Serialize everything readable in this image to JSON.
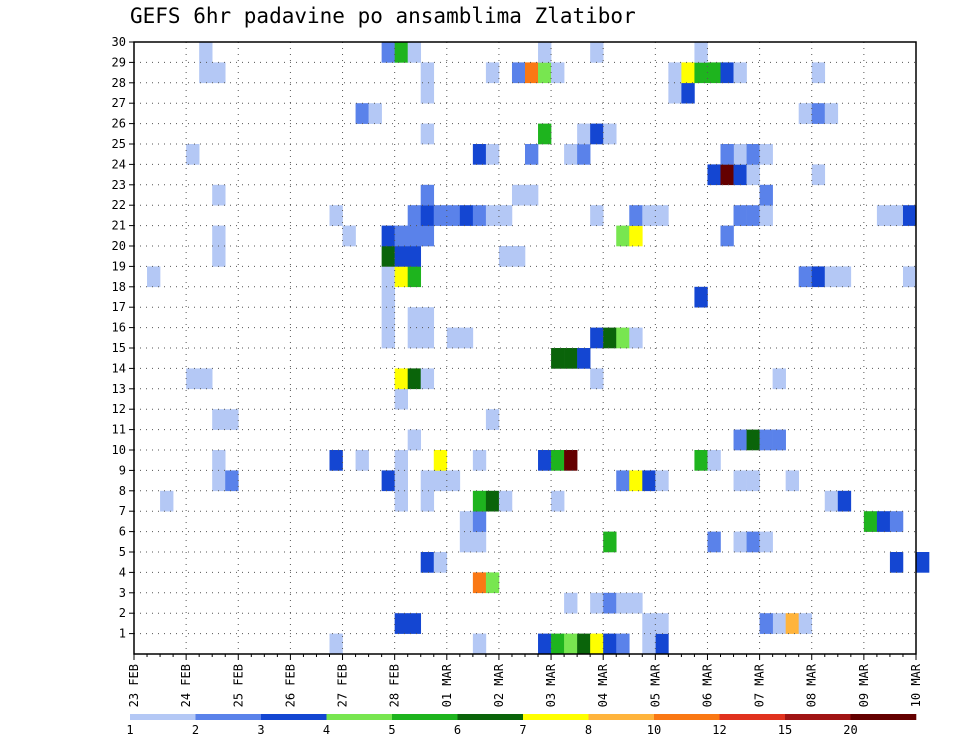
{
  "title": "GEFS 6hr padavine po ansamblima Zlatibor",
  "chart_data": {
    "type": "heatmap",
    "title": "GEFS 6hr padavine po ansamblima Zlatibor",
    "x_ticks": [
      "23 FEB",
      "24 FEB",
      "25 FEB",
      "26 FEB",
      "27 FEB",
      "28 FEB",
      "01 MAR",
      "02 MAR",
      "03 MAR",
      "04 MAR",
      "05 MAR",
      "06 MAR",
      "07 MAR",
      "08 MAR",
      "09 MAR",
      "10 MAR"
    ],
    "y_ticks": [
      1,
      2,
      3,
      4,
      5,
      6,
      7,
      8,
      9,
      10,
      11,
      12,
      13,
      14,
      15,
      16,
      17,
      18,
      19,
      20,
      21,
      22,
      23,
      24,
      25,
      26,
      27,
      28,
      29,
      30
    ],
    "ylim": [
      0,
      30
    ],
    "x_steps": 60,
    "grid": true,
    "colorbar": {
      "labels": [
        "1",
        "2",
        "3",
        "4",
        "5",
        "6",
        "7",
        "8",
        "10",
        "12",
        "15",
        "20"
      ],
      "colors": [
        "#b4c8f5",
        "#5a82ea",
        "#1446d2",
        "#78e650",
        "#1eb41e",
        "#0a640a",
        "#ffff00",
        "#ffb43c",
        "#fa7814",
        "#e1321e",
        "#a01414",
        "#640000"
      ]
    },
    "cells": [
      [
        31,
        0,
        2
      ],
      [
        32,
        0,
        4
      ],
      [
        33,
        0,
        3
      ],
      [
        34,
        0,
        5
      ],
      [
        35,
        0,
        6
      ],
      [
        36,
        0,
        2
      ],
      [
        37,
        0,
        1
      ],
      [
        40,
        0,
        2
      ],
      [
        26,
        0,
        0
      ],
      [
        15,
        0,
        0
      ],
      [
        21,
        1,
        2
      ],
      [
        20,
        1,
        2
      ],
      [
        39,
        1,
        0
      ],
      [
        40,
        1,
        0
      ],
      [
        49,
        1,
        0
      ],
      [
        48,
        1,
        1
      ],
      [
        50,
        1,
        7
      ],
      [
        51,
        1,
        0
      ],
      [
        33,
        2,
        0
      ],
      [
        35,
        2,
        0
      ],
      [
        36,
        2,
        1
      ],
      [
        37,
        2,
        0
      ],
      [
        38,
        2,
        0
      ],
      [
        26,
        3,
        8
      ],
      [
        27,
        3,
        3
      ],
      [
        22,
        4,
        2
      ],
      [
        23,
        4,
        0
      ],
      [
        60,
        4,
        2
      ],
      [
        58,
        4,
        2
      ],
      [
        25,
        5,
        0
      ],
      [
        26,
        5,
        0
      ],
      [
        36,
        5,
        4
      ],
      [
        44,
        5,
        1
      ],
      [
        46,
        5,
        0
      ],
      [
        47,
        5,
        1
      ],
      [
        48,
        5,
        0
      ],
      [
        25,
        6,
        0
      ],
      [
        26,
        6,
        1
      ],
      [
        56,
        6,
        4
      ],
      [
        57,
        6,
        2
      ],
      [
        58,
        6,
        1
      ],
      [
        2,
        7,
        0
      ],
      [
        20,
        7,
        0
      ],
      [
        22,
        7,
        0
      ],
      [
        26,
        7,
        4
      ],
      [
        27,
        7,
        5
      ],
      [
        28,
        7,
        0
      ],
      [
        32,
        7,
        0
      ],
      [
        53,
        7,
        0
      ],
      [
        54,
        7,
        2
      ],
      [
        19,
        8,
        2
      ],
      [
        20,
        8,
        0
      ],
      [
        22,
        8,
        0
      ],
      [
        23,
        8,
        0
      ],
      [
        24,
        8,
        0
      ],
      [
        6,
        8,
        0
      ],
      [
        7,
        8,
        1
      ],
      [
        37,
        8,
        1
      ],
      [
        38,
        8,
        6
      ],
      [
        39,
        8,
        2
      ],
      [
        40,
        8,
        0
      ],
      [
        46,
        8,
        0
      ],
      [
        47,
        8,
        0
      ],
      [
        50,
        8,
        0
      ],
      [
        15,
        9,
        2
      ],
      [
        17,
        9,
        0
      ],
      [
        20,
        9,
        0
      ],
      [
        23,
        9,
        6
      ],
      [
        26,
        9,
        0
      ],
      [
        31,
        9,
        2
      ],
      [
        32,
        9,
        4
      ],
      [
        33,
        9,
        11
      ],
      [
        43,
        9,
        4
      ],
      [
        44,
        9,
        0
      ],
      [
        6,
        9,
        0
      ],
      [
        21,
        10,
        0
      ],
      [
        46,
        10,
        1
      ],
      [
        47,
        10,
        5
      ],
      [
        48,
        10,
        1
      ],
      [
        49,
        10,
        1
      ],
      [
        6,
        11,
        0
      ],
      [
        7,
        11,
        0
      ],
      [
        27,
        11,
        0
      ],
      [
        20,
        12,
        0
      ],
      [
        4,
        13,
        0
      ],
      [
        5,
        13,
        0
      ],
      [
        20,
        13,
        6
      ],
      [
        21,
        13,
        5
      ],
      [
        22,
        13,
        0
      ],
      [
        35,
        13,
        0
      ],
      [
        49,
        13,
        0
      ],
      [
        32,
        14,
        5
      ],
      [
        33,
        14,
        5
      ],
      [
        34,
        14,
        2
      ],
      [
        35,
        15,
        2
      ],
      [
        36,
        15,
        5
      ],
      [
        37,
        15,
        3
      ],
      [
        38,
        15,
        0
      ],
      [
        19,
        15,
        0
      ],
      [
        21,
        15,
        0
      ],
      [
        22,
        15,
        0
      ],
      [
        24,
        15,
        0
      ],
      [
        25,
        15,
        0
      ],
      [
        19,
        16,
        0
      ],
      [
        21,
        16,
        0
      ],
      [
        22,
        16,
        0
      ],
      [
        43,
        17,
        2
      ],
      [
        19,
        17,
        0
      ],
      [
        19,
        18,
        0
      ],
      [
        20,
        18,
        6
      ],
      [
        21,
        18,
        4
      ],
      [
        1,
        18,
        0
      ],
      [
        51,
        18,
        1
      ],
      [
        52,
        18,
        2
      ],
      [
        53,
        18,
        0
      ],
      [
        54,
        18,
        0
      ],
      [
        59,
        18,
        0
      ],
      [
        19,
        19,
        5
      ],
      [
        20,
        19,
        2
      ],
      [
        21,
        19,
        2
      ],
      [
        6,
        19,
        0
      ],
      [
        28,
        19,
        0
      ],
      [
        29,
        19,
        0
      ],
      [
        16,
        20,
        0
      ],
      [
        19,
        20,
        2
      ],
      [
        20,
        20,
        1
      ],
      [
        21,
        20,
        1
      ],
      [
        22,
        20,
        1
      ],
      [
        6,
        20,
        0
      ],
      [
        37,
        20,
        3
      ],
      [
        38,
        20,
        6
      ],
      [
        45,
        20,
        1
      ],
      [
        15,
        21,
        0
      ],
      [
        21,
        21,
        1
      ],
      [
        22,
        21,
        2
      ],
      [
        23,
        21,
        1
      ],
      [
        24,
        21,
        1
      ],
      [
        25,
        21,
        2
      ],
      [
        26,
        21,
        1
      ],
      [
        27,
        21,
        0
      ],
      [
        28,
        21,
        0
      ],
      [
        35,
        21,
        0
      ],
      [
        38,
        21,
        1
      ],
      [
        39,
        21,
        0
      ],
      [
        40,
        21,
        0
      ],
      [
        46,
        21,
        1
      ],
      [
        47,
        21,
        1
      ],
      [
        48,
        21,
        0
      ],
      [
        57,
        21,
        0
      ],
      [
        58,
        21,
        0
      ],
      [
        59,
        21,
        2
      ],
      [
        22,
        22,
        1
      ],
      [
        29,
        22,
        0
      ],
      [
        30,
        22,
        0
      ],
      [
        48,
        22,
        1
      ],
      [
        6,
        22,
        0
      ],
      [
        44,
        23,
        2
      ],
      [
        45,
        23,
        11
      ],
      [
        46,
        23,
        2
      ],
      [
        47,
        23,
        0
      ],
      [
        52,
        23,
        0
      ],
      [
        4,
        24,
        0
      ],
      [
        26,
        24,
        2
      ],
      [
        27,
        24,
        0
      ],
      [
        30,
        24,
        1
      ],
      [
        33,
        24,
        0
      ],
      [
        34,
        24,
        1
      ],
      [
        46,
        24,
        0
      ],
      [
        47,
        24,
        1
      ],
      [
        48,
        24,
        0
      ],
      [
        22,
        25,
        0
      ],
      [
        31,
        25,
        4
      ],
      [
        34,
        25,
        0
      ],
      [
        35,
        25,
        2
      ],
      [
        36,
        25,
        0
      ],
      [
        17,
        26,
        1
      ],
      [
        18,
        26,
        0
      ],
      [
        51,
        26,
        0
      ],
      [
        52,
        26,
        1
      ],
      [
        53,
        26,
        0
      ],
      [
        22,
        27,
        0
      ],
      [
        41,
        27,
        0
      ],
      [
        42,
        27,
        2
      ],
      [
        5,
        28,
        0
      ],
      [
        6,
        28,
        0
      ],
      [
        22,
        28,
        0
      ],
      [
        27,
        28,
        0
      ],
      [
        29,
        28,
        1
      ],
      [
        30,
        28,
        8
      ],
      [
        31,
        28,
        3
      ],
      [
        32,
        28,
        0
      ],
      [
        41,
        28,
        0
      ],
      [
        42,
        28,
        6
      ],
      [
        43,
        28,
        4
      ],
      [
        44,
        28,
        4
      ],
      [
        45,
        28,
        2
      ],
      [
        46,
        28,
        0
      ],
      [
        52,
        28,
        0
      ],
      [
        5,
        29,
        0
      ],
      [
        19,
        29,
        1
      ],
      [
        20,
        29,
        4
      ],
      [
        21,
        29,
        0
      ],
      [
        31,
        29,
        0
      ],
      [
        35,
        29,
        0
      ],
      [
        43,
        29,
        0
      ],
      [
        39,
        0,
        0
      ],
      [
        45,
        24,
        1
      ]
    ]
  }
}
